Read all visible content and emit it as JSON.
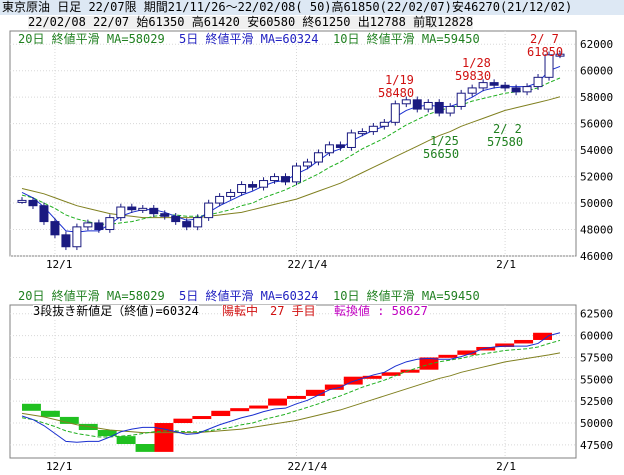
{
  "header": {
    "line1": "東京原油 日足 22/07限 期間21/11/26～22/02/08( 50)高61850(22/02/07)安46270(21/12/02)",
    "line2": "22/02/08 22/07 始61350 高61420 安60580 終61250 出12788 前取12828"
  },
  "legend_top": {
    "ma20": "20日 終値平滑 MA=58029",
    "ma5": "5日 終値平滑 MA=60324",
    "ma10": "10日 終値平滑 MA=59450"
  },
  "legend_bottom": {
    "ma20": "20日 終値平滑 MA=58029",
    "ma5": "5日 終値平滑 MA=60324",
    "ma10": "10日 終値平滑 MA=59450",
    "line2_a": "3段抜き新値足（終値)=60324",
    "line2_b": "陽転中　27 手目",
    "line2_c": "転換値 : 58627"
  },
  "annotations": {
    "a1_date": "1/19",
    "a1_val": "58480",
    "a2_date": "1/25",
    "a2_val": "56650",
    "a3_date": "1/28",
    "a3_val": "59830",
    "a4_date": "2/ 2",
    "a4_val": "57580",
    "a5_date": "2/ 7",
    "a5_val": "61850"
  },
  "x_labels": [
    "12/1",
    "22/1/4",
    "2/1"
  ],
  "y_labels_top": [
    "62000",
    "60000",
    "58000",
    "56000",
    "54000",
    "52000",
    "50000",
    "48000",
    "46000"
  ],
  "y_labels_bottom": [
    "62500",
    "60000",
    "57500",
    "55000",
    "52500",
    "50000",
    "47500"
  ],
  "colors": {
    "ma5": "#1a2fd0",
    "ma10": "#20b020",
    "ma20": "#808020",
    "up": "#ff0000",
    "down": "#20c020",
    "candle": "#1a1a80"
  },
  "chart_data": [
    {
      "type": "line",
      "title": "東京原油 日足 22/07限",
      "note": "candlestick price chart with moving averages",
      "x": [
        "21/11/26",
        "21/11/29",
        "21/11/30",
        "21/12/01",
        "21/12/02",
        "21/12/03",
        "21/12/06",
        "21/12/07",
        "21/12/08",
        "21/12/09",
        "21/12/10",
        "21/12/13",
        "21/12/14",
        "21/12/15",
        "21/12/16",
        "21/12/17",
        "21/12/20",
        "21/12/21",
        "21/12/22",
        "21/12/23",
        "21/12/24",
        "21/12/27",
        "21/12/28",
        "21/12/29",
        "21/12/30",
        "22/01/04",
        "22/01/05",
        "22/01/06",
        "22/01/07",
        "22/01/11",
        "22/01/12",
        "22/01/13",
        "22/01/14",
        "22/01/17",
        "22/01/18",
        "22/01/19",
        "22/01/20",
        "22/01/21",
        "22/01/24",
        "22/01/25",
        "22/01/26",
        "22/01/27",
        "22/01/28",
        "22/01/31",
        "22/02/01",
        "22/02/02",
        "22/02/03",
        "22/02/04",
        "22/02/07",
        "22/02/08"
      ],
      "series": [
        {
          "name": "終値",
          "values": [
            50200,
            49800,
            48600,
            47600,
            46700,
            48200,
            48500,
            48000,
            48900,
            49700,
            49500,
            49600,
            49200,
            49000,
            48600,
            48200,
            48900,
            50000,
            50500,
            50800,
            51400,
            51200,
            51700,
            52000,
            51600,
            52800,
            53100,
            53800,
            54400,
            54200,
            55300,
            55400,
            55800,
            56100,
            57500,
            57800,
            57100,
            57600,
            56800,
            57300,
            58300,
            58700,
            59100,
            58900,
            58700,
            58400,
            58800,
            59500,
            61200,
            61250
          ]
        },
        {
          "name": "5日 終値平滑",
          "values": [
            50800,
            50400,
            49700,
            48800,
            47900,
            47800,
            47900,
            47900,
            48400,
            49000,
            49300,
            49500,
            49500,
            49300,
            49000,
            48700,
            48800,
            49300,
            49800,
            50200,
            50600,
            50900,
            51300,
            51600,
            51700,
            52200,
            52600,
            53200,
            53800,
            54100,
            54700,
            55100,
            55500,
            55800,
            56500,
            57000,
            57300,
            57400,
            57300,
            57300,
            57600,
            58000,
            58500,
            58700,
            58800,
            58800,
            58800,
            59100,
            60000,
            60324
          ]
        },
        {
          "name": "10日 終値平滑",
          "values": [
            50600,
            50400,
            50000,
            49600,
            49100,
            48800,
            48600,
            48400,
            48400,
            48500,
            48600,
            48800,
            49000,
            49100,
            49100,
            49000,
            49000,
            49100,
            49300,
            49500,
            49800,
            50000,
            50400,
            50700,
            51000,
            51400,
            51800,
            52200,
            52700,
            53100,
            53600,
            54100,
            54500,
            54900,
            55400,
            55900,
            56300,
            56700,
            57000,
            57200,
            57400,
            57700,
            57900,
            58100,
            58300,
            58400,
            58500,
            58700,
            59100,
            59450
          ]
        },
        {
          "name": "20日 終値平滑",
          "values": [
            51100,
            50900,
            50700,
            50400,
            50100,
            49800,
            49600,
            49400,
            49200,
            49100,
            49000,
            48900,
            48900,
            48900,
            48900,
            48900,
            48900,
            49000,
            49100,
            49200,
            49300,
            49500,
            49700,
            49900,
            50100,
            50300,
            50600,
            50900,
            51200,
            51500,
            51900,
            52300,
            52700,
            53100,
            53500,
            53900,
            54300,
            54700,
            55100,
            55400,
            55800,
            56100,
            56400,
            56700,
            57000,
            57200,
            57400,
            57600,
            57800,
            58029
          ]
        }
      ],
      "annotations": [
        {
          "date": "1/19",
          "value": 58480
        },
        {
          "date": "1/25",
          "value": 56650
        },
        {
          "date": "1/28",
          "value": 59830
        },
        {
          "date": "2/ 2",
          "value": 57580
        },
        {
          "date": "2/ 7",
          "value": 61850
        }
      ],
      "ylim": [
        46000,
        63000
      ],
      "x_tick_labels": [
        "12/1",
        "22/1/4",
        "2/1"
      ],
      "grid": true
    },
    {
      "type": "bar",
      "title": "3段抜き新値足（終値)",
      "note": "three-line break chart: green = down bricks, red = up bricks",
      "bricks": [
        {
          "dir": "down",
          "from": 52200,
          "to": 51400
        },
        {
          "dir": "down",
          "from": 51400,
          "to": 50700
        },
        {
          "dir": "down",
          "from": 50700,
          "to": 49900
        },
        {
          "dir": "down",
          "from": 49900,
          "to": 49200
        },
        {
          "dir": "down",
          "from": 49200,
          "to": 48500
        },
        {
          "dir": "down",
          "from": 48500,
          "to": 47600
        },
        {
          "dir": "down",
          "from": 47600,
          "to": 46700
        },
        {
          "dir": "up",
          "from": 46700,
          "to": 50000
        },
        {
          "dir": "up",
          "from": 50000,
          "to": 50500
        },
        {
          "dir": "up",
          "from": 50500,
          "to": 50800
        },
        {
          "dir": "up",
          "from": 50800,
          "to": 51400
        },
        {
          "dir": "up",
          "from": 51400,
          "to": 51700
        },
        {
          "dir": "up",
          "from": 51700,
          "to": 52000
        },
        {
          "dir": "up",
          "from": 52000,
          "to": 52800
        },
        {
          "dir": "up",
          "from": 52800,
          "to": 53100
        },
        {
          "dir": "up",
          "from": 53100,
          "to": 53800
        },
        {
          "dir": "up",
          "from": 53800,
          "to": 54400
        },
        {
          "dir": "up",
          "from": 54400,
          "to": 55300
        },
        {
          "dir": "up",
          "from": 55300,
          "to": 55400
        },
        {
          "dir": "up",
          "from": 55400,
          "to": 55800
        },
        {
          "dir": "up",
          "from": 55800,
          "to": 56100
        },
        {
          "dir": "up",
          "from": 56100,
          "to": 57500
        },
        {
          "dir": "up",
          "from": 57500,
          "to": 57800
        },
        {
          "dir": "up",
          "from": 57800,
          "to": 58300
        },
        {
          "dir": "up",
          "from": 58300,
          "to": 58700
        },
        {
          "dir": "up",
          "from": 58700,
          "to": 59100
        },
        {
          "dir": "up",
          "from": 59100,
          "to": 59500
        },
        {
          "dir": "up",
          "from": 59500,
          "to": 60324
        }
      ],
      "ylim": [
        46000,
        63500
      ],
      "x_tick_labels": [
        "12/1",
        "22/1/4",
        "2/1"
      ],
      "grid": true
    }
  ]
}
